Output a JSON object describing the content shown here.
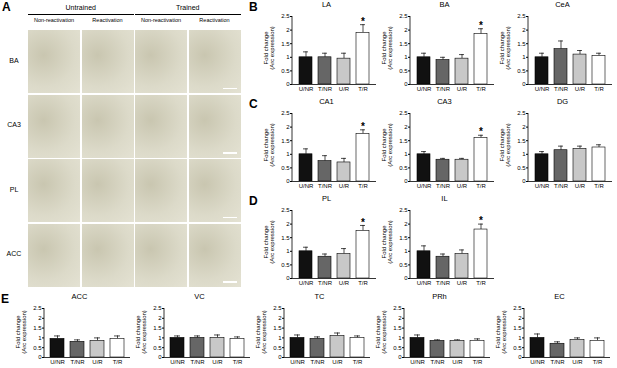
{
  "figure": {
    "panel": "A",
    "groups": [
      "Untrained",
      "Trained"
    ],
    "conditions": [
      "Non-reactivation",
      "Reactivation"
    ],
    "rows": [
      "BA",
      "CA3",
      "PL",
      "ACC"
    ]
  },
  "chart_data": [
    {
      "type": "bar",
      "panel": "B",
      "title": "LA",
      "categories": [
        "U/NR",
        "T/NR",
        "U/R",
        "T/R"
      ],
      "values": [
        1.0,
        1.0,
        0.95,
        1.9
      ],
      "errors": [
        0.2,
        0.15,
        0.2,
        0.3
      ],
      "colors": [
        "#111111",
        "#666666",
        "#c8c8c8",
        "#ffffff"
      ],
      "y_label": "Fold change\n(Arc expression)",
      "ylim": [
        0,
        2.5
      ],
      "yticks": [
        0,
        0.5,
        1,
        1.5,
        2,
        2.5
      ],
      "annotations": [
        {
          "category": "T/R",
          "text": "*"
        }
      ]
    },
    {
      "type": "bar",
      "title": "BA",
      "categories": [
        "U/NR",
        "T/NR",
        "U/R",
        "T/R"
      ],
      "values": [
        1.0,
        0.9,
        0.95,
        1.85
      ],
      "errors": [
        0.15,
        0.1,
        0.15,
        0.2
      ],
      "colors": [
        "#111111",
        "#666666",
        "#c8c8c8",
        "#ffffff"
      ],
      "y_label": "Fold change\n(Arc expression)",
      "ylim": [
        0,
        2.5
      ],
      "yticks": [
        0,
        0.5,
        1,
        1.5,
        2,
        2.5
      ],
      "annotations": [
        {
          "category": "T/R",
          "text": "*"
        }
      ]
    },
    {
      "type": "bar",
      "title": "CeA",
      "categories": [
        "U/NR",
        "T/NR",
        "U/R",
        "T/R"
      ],
      "values": [
        1.0,
        1.3,
        1.1,
        1.05
      ],
      "errors": [
        0.15,
        0.3,
        0.15,
        0.1
      ],
      "colors": [
        "#111111",
        "#666666",
        "#c8c8c8",
        "#ffffff"
      ],
      "y_label": "Fold change\n(Arc expression)",
      "ylim": [
        0,
        2.5
      ],
      "yticks": [
        0,
        0.5,
        1,
        1.5,
        2,
        2.5
      ],
      "annotations": []
    },
    {
      "type": "bar",
      "panel": "C",
      "title": "CA1",
      "categories": [
        "U/NR",
        "T/NR",
        "U/R",
        "T/R"
      ],
      "values": [
        1.0,
        0.75,
        0.7,
        1.75
      ],
      "errors": [
        0.2,
        0.2,
        0.15,
        0.15
      ],
      "colors": [
        "#111111",
        "#666666",
        "#c8c8c8",
        "#ffffff"
      ],
      "y_label": "Fold change\n(Arc expression)",
      "ylim": [
        0,
        2.5
      ],
      "yticks": [
        0,
        0.5,
        1,
        1.5,
        2,
        2.5
      ],
      "annotations": [
        {
          "category": "T/R",
          "text": "*"
        }
      ]
    },
    {
      "type": "bar",
      "title": "CA3",
      "categories": [
        "U/NR",
        "T/NR",
        "U/R",
        "T/R"
      ],
      "values": [
        1.0,
        0.8,
        0.8,
        1.6
      ],
      "errors": [
        0.1,
        0.05,
        0.05,
        0.1
      ],
      "colors": [
        "#111111",
        "#666666",
        "#c8c8c8",
        "#ffffff"
      ],
      "y_label": "Fold change\n(Arc expression)",
      "ylim": [
        0,
        2.5
      ],
      "yticks": [
        0,
        0.5,
        1,
        1.5,
        2,
        2.5
      ],
      "annotations": [
        {
          "category": "T/R",
          "text": "*"
        }
      ]
    },
    {
      "type": "bar",
      "title": "DG",
      "categories": [
        "U/NR",
        "T/NR",
        "U/R",
        "T/R"
      ],
      "values": [
        1.0,
        1.15,
        1.2,
        1.25
      ],
      "errors": [
        0.1,
        0.15,
        0.1,
        0.1
      ],
      "colors": [
        "#111111",
        "#666666",
        "#c8c8c8",
        "#ffffff"
      ],
      "y_label": "Fold change\n(Arc expression)",
      "ylim": [
        0,
        2.5
      ],
      "yticks": [
        0,
        0.5,
        1,
        1.5,
        2,
        2.5
      ],
      "annotations": []
    },
    {
      "type": "bar",
      "panel": "D",
      "title": "PL",
      "categories": [
        "U/NR",
        "T/NR",
        "U/R",
        "T/R"
      ],
      "values": [
        1.0,
        0.8,
        0.9,
        1.75
      ],
      "errors": [
        0.15,
        0.1,
        0.2,
        0.2
      ],
      "colors": [
        "#111111",
        "#666666",
        "#c8c8c8",
        "#ffffff"
      ],
      "y_label": "Fold change\n(Arc expression)",
      "ylim": [
        0,
        2.5
      ],
      "yticks": [
        0,
        0.5,
        1,
        1.5,
        2,
        2.5
      ],
      "annotations": [
        {
          "category": "T/R",
          "text": "*"
        }
      ]
    },
    {
      "type": "bar",
      "title": "IL",
      "categories": [
        "U/NR",
        "T/NR",
        "U/R",
        "T/R"
      ],
      "values": [
        1.0,
        0.8,
        0.9,
        1.8
      ],
      "errors": [
        0.2,
        0.1,
        0.15,
        0.2
      ],
      "colors": [
        "#111111",
        "#666666",
        "#c8c8c8",
        "#ffffff"
      ],
      "y_label": "Fold change\n(Arc expression)",
      "ylim": [
        0,
        2.5
      ],
      "yticks": [
        0,
        0.5,
        1,
        1.5,
        2,
        2.5
      ],
      "annotations": [
        {
          "category": "T/R",
          "text": "*"
        }
      ]
    },
    {
      "type": "bar",
      "panel": "E",
      "title": "ACC",
      "categories": [
        "U/NR",
        "T/NR",
        "U/R",
        "T/R"
      ],
      "values": [
        0.95,
        0.8,
        0.85,
        0.95
      ],
      "errors": [
        0.15,
        0.1,
        0.15,
        0.15
      ],
      "colors": [
        "#111111",
        "#666666",
        "#c8c8c8",
        "#ffffff"
      ],
      "y_label": "Fold change\n(Arc expression)",
      "ylim": [
        0,
        2.5
      ],
      "yticks": [
        0,
        0.5,
        1,
        1.5,
        2,
        2.5
      ],
      "annotations": []
    },
    {
      "type": "bar",
      "title": "VC",
      "categories": [
        "U/NR",
        "T/NR",
        "U/R",
        "T/R"
      ],
      "values": [
        1.0,
        1.0,
        1.0,
        0.95
      ],
      "errors": [
        0.1,
        0.1,
        0.15,
        0.1
      ],
      "colors": [
        "#111111",
        "#666666",
        "#c8c8c8",
        "#ffffff"
      ],
      "y_label": "Fold change\n(Arc expression)",
      "ylim": [
        0,
        2.5
      ],
      "yticks": [
        0,
        0.5,
        1,
        1.5,
        2,
        2.5
      ],
      "annotations": []
    },
    {
      "type": "bar",
      "title": "TC",
      "categories": [
        "U/NR",
        "T/NR",
        "U/R",
        "T/R"
      ],
      "values": [
        1.0,
        0.95,
        1.1,
        1.0
      ],
      "errors": [
        0.15,
        0.1,
        0.15,
        0.1
      ],
      "colors": [
        "#111111",
        "#666666",
        "#c8c8c8",
        "#ffffff"
      ],
      "y_label": "Fold change\n(Arc expression)",
      "ylim": [
        0,
        2.5
      ],
      "yticks": [
        0,
        0.5,
        1,
        1.5,
        2,
        2.5
      ],
      "annotations": []
    },
    {
      "type": "bar",
      "title": "PRh",
      "categories": [
        "U/NR",
        "T/NR",
        "U/R",
        "T/R"
      ],
      "values": [
        1.0,
        0.85,
        0.85,
        0.85
      ],
      "errors": [
        0.15,
        0.05,
        0.05,
        0.1
      ],
      "colors": [
        "#111111",
        "#666666",
        "#c8c8c8",
        "#ffffff"
      ],
      "y_label": "Fold change\n(Arc expression)",
      "ylim": [
        0,
        2.5
      ],
      "yticks": [
        0,
        0.5,
        1,
        1.5,
        2,
        2.5
      ],
      "annotations": []
    },
    {
      "type": "bar",
      "title": "EC",
      "categories": [
        "U/NR",
        "T/NR",
        "U/R",
        "T/R"
      ],
      "values": [
        1.0,
        0.7,
        0.9,
        0.85
      ],
      "errors": [
        0.2,
        0.1,
        0.1,
        0.15
      ],
      "colors": [
        "#111111",
        "#666666",
        "#c8c8c8",
        "#ffffff"
      ],
      "y_label": "Fold change\n(Arc expression)",
      "ylim": [
        0,
        2.5
      ],
      "yticks": [
        0,
        0.5,
        1,
        1.5,
        2,
        2.5
      ],
      "annotations": []
    }
  ]
}
